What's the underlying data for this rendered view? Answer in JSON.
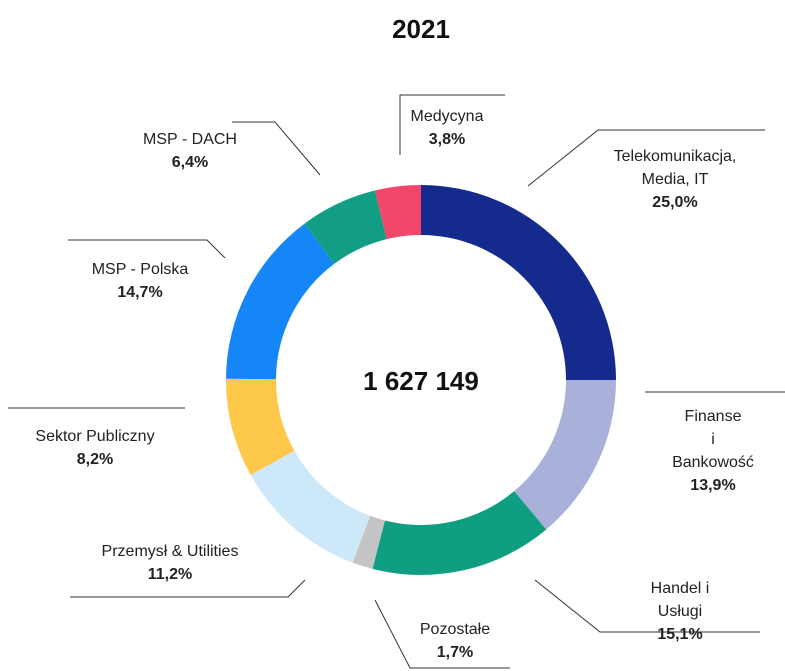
{
  "chart_data": {
    "type": "donut",
    "title": "2021",
    "center_label": "1 627 149",
    "categories": [
      "Telekomunikacja,\nMedia, IT",
      "Finanse\ni Bankowość",
      "Handel i Usługi",
      "Pozostałe",
      "Przemysł & Utilities",
      "Sektor Publiczny",
      "MSP - Polska",
      "MSP - DACH",
      "Medycyna"
    ],
    "values": [
      25.0,
      13.9,
      15.1,
      1.7,
      11.2,
      8.2,
      14.7,
      6.4,
      3.8
    ],
    "value_labels": [
      "25,0%",
      "13,9%",
      "15,1%",
      "1,7%",
      "11,2%",
      "8,2%",
      "14,7%",
      "6,4%",
      "3,8%"
    ],
    "colors": [
      "#142a8c",
      "#a9b0d9",
      "#0f9e82",
      "#c4c4c4",
      "#cde8f9",
      "#fec84b",
      "#1486f8",
      "#129e84",
      "#f0476a"
    ]
  }
}
